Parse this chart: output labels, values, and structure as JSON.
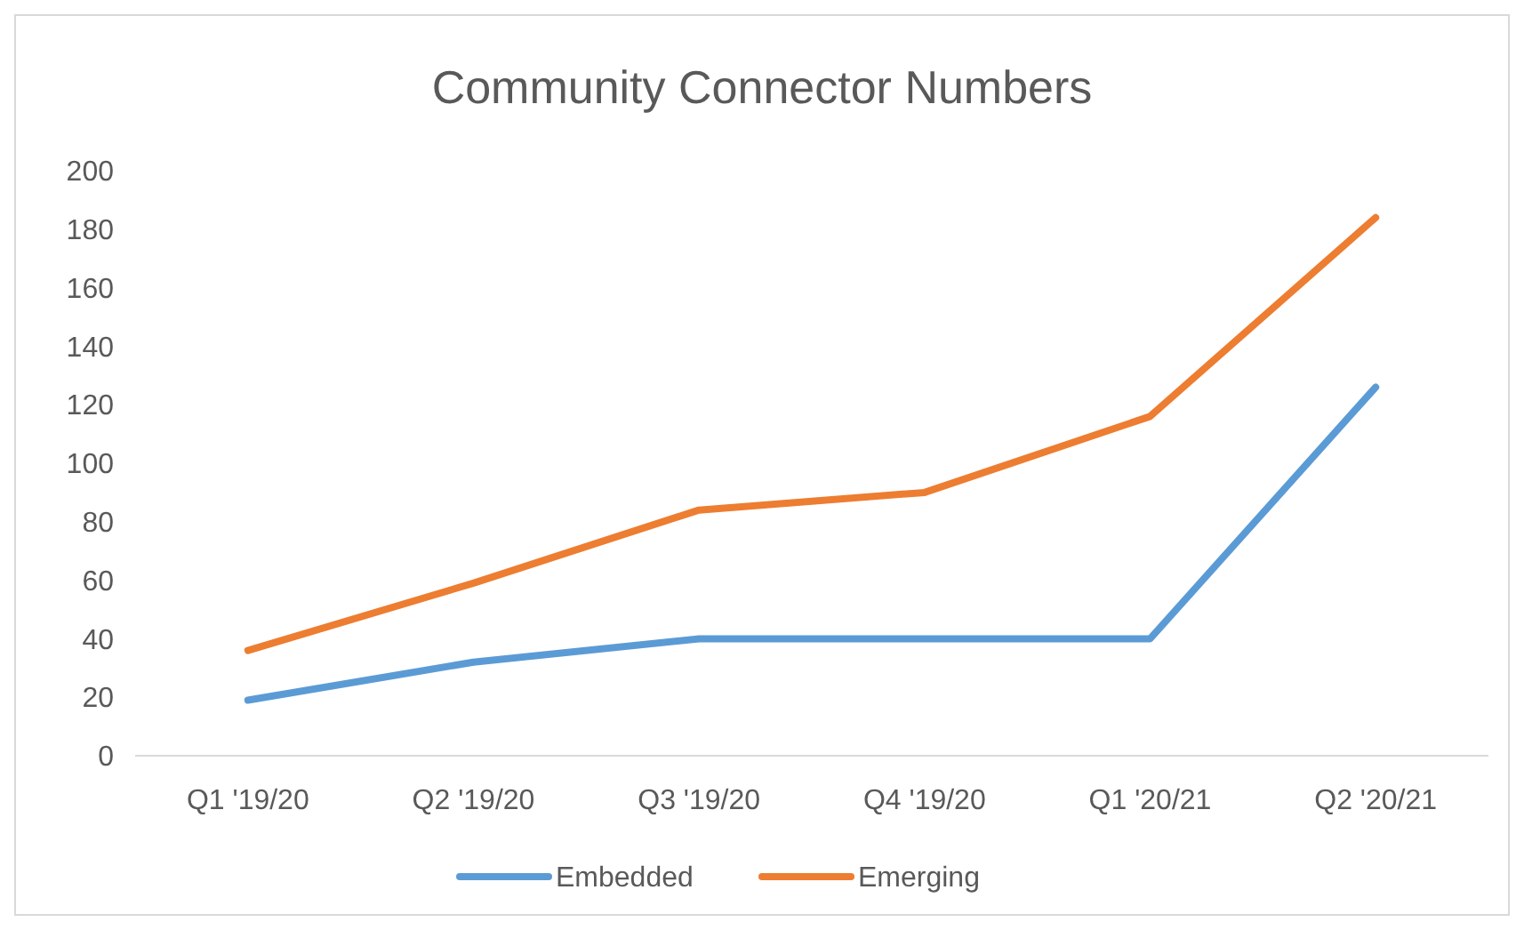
{
  "chart_data": {
    "type": "line",
    "title": "Community Connector Numbers",
    "categories": [
      "Q1 '19/20",
      "Q2 '19/20",
      "Q3 '19/20",
      "Q4 '19/20",
      "Q1 '20/21",
      "Q2 '20/21"
    ],
    "series": [
      {
        "name": "Embedded",
        "color": "#5b9bd5",
        "values": [
          19,
          32,
          40,
          40,
          40,
          126
        ]
      },
      {
        "name": "Emerging",
        "color": "#ed7d31",
        "values": [
          36,
          59,
          84,
          90,
          116,
          184
        ]
      }
    ],
    "ylim": [
      0,
      200
    ],
    "yticks": [
      0,
      20,
      40,
      60,
      80,
      100,
      120,
      140,
      160,
      180,
      200
    ],
    "grid": false,
    "legend": "bottom",
    "marker": "none",
    "line_style": "solid"
  }
}
